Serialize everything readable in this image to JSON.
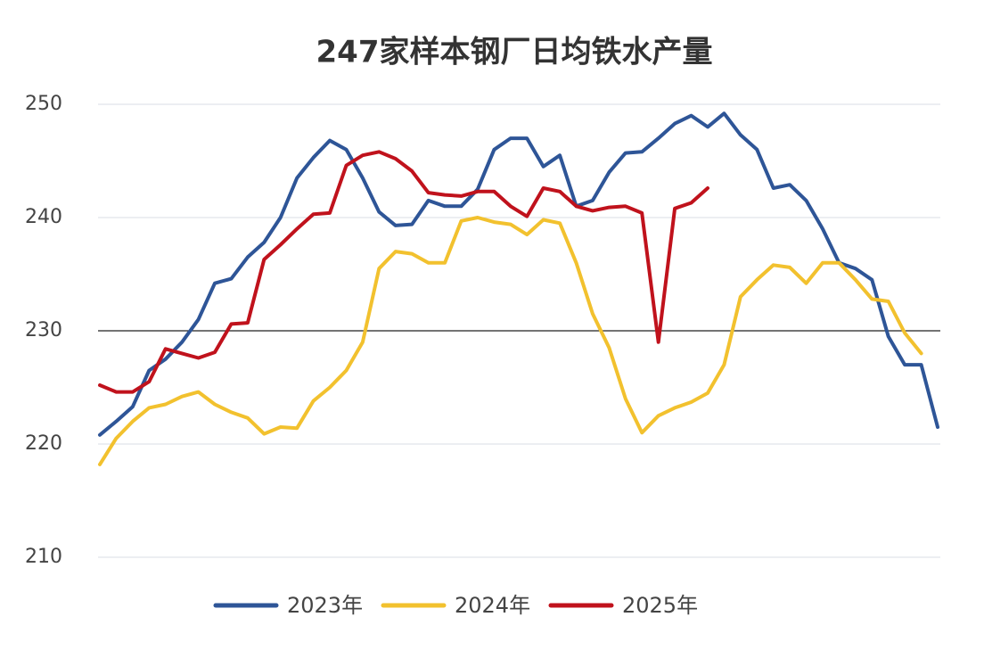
{
  "chart_data": {
    "type": "line",
    "title": "247家样本钢厂日均铁水产量",
    "categories": [
      null,
      null,
      null,
      null,
      null,
      null,
      null,
      null,
      null,
      null,
      null,
      null,
      null,
      null,
      null,
      null,
      null,
      null,
      null,
      null,
      null,
      null,
      null,
      null,
      null,
      null,
      null,
      null,
      null,
      null,
      null,
      null,
      null,
      null,
      null,
      null,
      null,
      null,
      null,
      null,
      null,
      null,
      null,
      null,
      null,
      null,
      null,
      null,
      null,
      null,
      null,
      null
    ],
    "series": [
      {
        "name": "2023年",
        "color": "#2e5597",
        "values": [
          220.8,
          222,
          223.3,
          226.5,
          227.5,
          229,
          231,
          234.2,
          234.6,
          236.5,
          237.8,
          240,
          243.5,
          245.3,
          246.8,
          246,
          243.5,
          240.5,
          239.3,
          239.4,
          241.5,
          241,
          241,
          242.5,
          246,
          247,
          247,
          244.5,
          245.5,
          241,
          241.5,
          244,
          245.7,
          245.8,
          247,
          248.3,
          249,
          248,
          249.2,
          247.3,
          246,
          242.6,
          242.9,
          241.5,
          239,
          236,
          235.5,
          234.5,
          229.5,
          227,
          227,
          221.5
        ]
      },
      {
        "name": "2024年",
        "color": "#f2c12e",
        "values": [
          218.2,
          220.5,
          222,
          223.2,
          223.5,
          224.2,
          224.6,
          223.5,
          222.8,
          222.3,
          220.9,
          221.5,
          221.4,
          223.8,
          225,
          226.5,
          229,
          235.5,
          237,
          236.8,
          236,
          236,
          239.7,
          240,
          239.6,
          239.4,
          238.5,
          239.8,
          239.5,
          236,
          231.5,
          228.5,
          224,
          221,
          222.5,
          223.2,
          223.7,
          224.5,
          227,
          233,
          234.5,
          235.8,
          235.6,
          234.2,
          236,
          236,
          234.5,
          232.8,
          232.6,
          229.8,
          228,
          null
        ]
      },
      {
        "name": "2025年",
        "color": "#c0121c",
        "values": [
          225.2,
          224.6,
          224.6,
          225.5,
          228.4,
          228,
          227.6,
          228.1,
          230.6,
          230.7,
          236.3,
          237.6,
          239,
          240.3,
          240.4,
          244.6,
          245.5,
          245.8,
          245.2,
          244.1,
          242.2,
          242,
          241.9,
          242.3,
          242.3,
          241,
          240.1,
          242.6,
          242.3,
          241,
          240.6,
          240.9,
          241,
          240.4,
          229,
          240.8,
          241.3,
          242.6,
          null,
          null,
          null,
          null,
          null,
          null,
          null,
          null,
          null,
          null,
          null,
          null,
          null,
          null
        ]
      }
    ],
    "ylim": [
      210,
      250
    ],
    "yticks": [
      210,
      220,
      230,
      240,
      250
    ],
    "grid": true,
    "ref_line": 230,
    "legend": "bottom"
  }
}
